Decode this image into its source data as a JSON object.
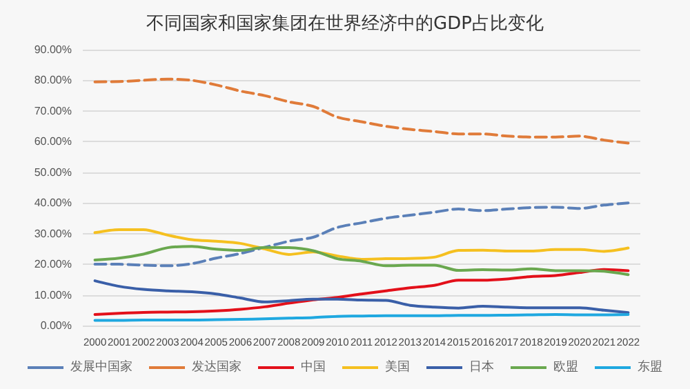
{
  "chart_data": {
    "type": "line",
    "title": "不同国家和国家集团在世界经济中的GDP占比变化",
    "categories": [
      "2000",
      "2001",
      "2002",
      "2003",
      "2004",
      "2005",
      "2006",
      "2007",
      "2008",
      "2009",
      "2010",
      "2011",
      "2012",
      "2013",
      "2014",
      "2015",
      "2016",
      "2017",
      "2018",
      "2019",
      "2020",
      "2021",
      "2022"
    ],
    "series": [
      {
        "name": "发展中国家",
        "color": "#5b80b8",
        "line_style": "dashed",
        "values": [
          20,
          20,
          19.7,
          19.5,
          20.2,
          22,
          23.5,
          25.5,
          27.5,
          28.8,
          32,
          33.5,
          35,
          36,
          37,
          38,
          37.5,
          38,
          38.5,
          38.6,
          38.2,
          39.3,
          40
        ]
      },
      {
        "name": "发达国家",
        "color": "#e07b39",
        "line_style": "dashed",
        "values": [
          79.5,
          79.6,
          80,
          80.4,
          80,
          78.5,
          76.5,
          75,
          73,
          71.5,
          68,
          66.5,
          65,
          64,
          63.3,
          62.5,
          62.5,
          61.8,
          61.5,
          61.5,
          61.8,
          60.5,
          59.5
        ]
      },
      {
        "name": "中国",
        "color": "#e3101a",
        "line_style": "solid",
        "values": [
          3.6,
          4,
          4.3,
          4.4,
          4.5,
          4.8,
          5.3,
          6.1,
          7.3,
          8.4,
          9.2,
          10.3,
          11.3,
          12.3,
          13.1,
          14.8,
          14.8,
          15.2,
          16,
          16.3,
          17.3,
          18.3,
          17.9
        ]
      },
      {
        "name": "美国",
        "color": "#f5c020",
        "line_style": "solid",
        "values": [
          30.3,
          31.3,
          31.3,
          29.5,
          28,
          27.5,
          26.8,
          25,
          23.2,
          24,
          22.7,
          21.6,
          21.8,
          21.9,
          22.3,
          24.5,
          24.6,
          24.3,
          24.3,
          24.8,
          24.8,
          24.2,
          25.3
        ]
      },
      {
        "name": "日本",
        "color": "#3a5fa8",
        "line_style": "solid",
        "values": [
          14.6,
          12.8,
          11.8,
          11.3,
          11,
          10.3,
          9,
          7.7,
          8.1,
          8.6,
          8.6,
          8.3,
          8.2,
          6.6,
          6,
          5.7,
          6.3,
          6,
          5.8,
          5.8,
          5.8,
          5,
          4.2
        ]
      },
      {
        "name": "欧盟",
        "color": "#6aa84f",
        "line_style": "solid",
        "values": [
          21.4,
          22,
          23.3,
          25.4,
          25.8,
          24.9,
          24.5,
          25.5,
          25.4,
          24.4,
          21.8,
          21,
          19.5,
          19.7,
          19.7,
          18,
          18.2,
          18.1,
          18.5,
          17.9,
          17.9,
          17.7,
          16.6
        ]
      },
      {
        "name": "东盟",
        "color": "#1fa8e0",
        "line_style": "solid",
        "values": [
          1.7,
          1.7,
          1.8,
          1.8,
          1.8,
          1.9,
          2,
          2.2,
          2.4,
          2.6,
          3,
          3.1,
          3.2,
          3.2,
          3.2,
          3.3,
          3.3,
          3.4,
          3.5,
          3.6,
          3.5,
          3.5,
          3.6
        ]
      }
    ],
    "ylim": [
      0,
      90
    ],
    "yticks": [
      {
        "value": 0,
        "label": "0.00%"
      },
      {
        "value": 10,
        "label": "10.00%"
      },
      {
        "value": 20,
        "label": "20.00%"
      },
      {
        "value": 30,
        "label": "30.00%"
      },
      {
        "value": 40,
        "label": "40.00%"
      },
      {
        "value": 50,
        "label": "50.00%"
      },
      {
        "value": 60,
        "label": "60.00%"
      },
      {
        "value": 70,
        "label": "70.00%"
      },
      {
        "value": 80,
        "label": "80.00%"
      },
      {
        "value": 90,
        "label": "90.00%"
      }
    ],
    "grid": "y",
    "legend": "bottom",
    "marker": "none"
  }
}
